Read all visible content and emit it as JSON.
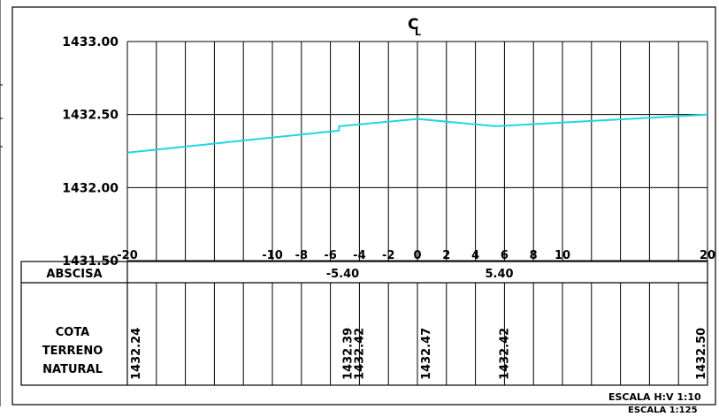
{
  "chart_data": {
    "type": "line",
    "title": "",
    "centerline_label": "C",
    "centerline_sub": "L",
    "y_ticks": [
      "1433.00",
      "1432.50",
      "1432.00",
      "1431.50"
    ],
    "ylim": [
      1431.5,
      1433.0
    ],
    "xlim": [
      -20,
      20
    ],
    "grid": true,
    "x_tick_labels": [
      "-20",
      "-10",
      "-8",
      "-6",
      "-4",
      "-2",
      "0",
      "2",
      "4",
      "6",
      "8",
      "10",
      "20"
    ],
    "x_tick_values": [
      -20,
      -10,
      -8,
      -6,
      -4,
      -2,
      0,
      2,
      4,
      6,
      8,
      10,
      20
    ],
    "series": [
      {
        "color": "#1fd6e6",
        "points": [
          {
            "x": -20,
            "y": 1432.24
          },
          {
            "x": -5.4,
            "y": 1432.39
          },
          {
            "x": -5.4,
            "y": 1432.42
          },
          {
            "x": 0,
            "y": 1432.47
          },
          {
            "x": 5.4,
            "y": 1432.42
          },
          {
            "x": 20,
            "y": 1432.5
          }
        ]
      }
    ]
  },
  "table": {
    "abscisa_label": "ABSCISA",
    "abscisa_marks": [
      {
        "x": -5.4,
        "label": "-5.40"
      },
      {
        "x": 5.4,
        "label": "5.40"
      }
    ],
    "cota_label_lines": [
      "COTA",
      "TERRENO",
      "NATURAL"
    ],
    "cota_values": [
      {
        "x": -20,
        "label": "1432.24"
      },
      {
        "x": -5.4,
        "label": "1432.39"
      },
      {
        "x": -4.6,
        "label": "1432.42"
      },
      {
        "x": 0,
        "label": "1432.47"
      },
      {
        "x": 5.4,
        "label": "1432.42"
      },
      {
        "x": 20,
        "label": "1432.50"
      }
    ]
  },
  "footer": {
    "scale_hv": "ESCALA H:V 1:10",
    "scale": "ESCALA 1:125"
  }
}
